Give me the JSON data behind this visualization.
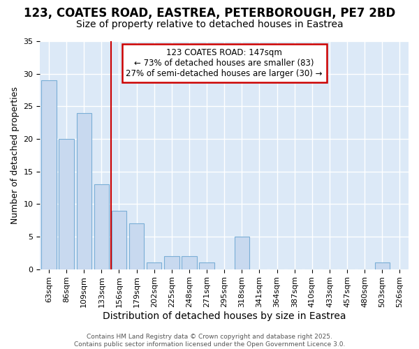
{
  "title1": "123, COATES ROAD, EASTREA, PETERBOROUGH, PE7 2BD",
  "title2": "Size of property relative to detached houses in Eastrea",
  "xlabel": "Distribution of detached houses by size in Eastrea",
  "ylabel": "Number of detached properties",
  "categories": [
    "63sqm",
    "86sqm",
    "109sqm",
    "133sqm",
    "156sqm",
    "179sqm",
    "202sqm",
    "225sqm",
    "248sqm",
    "271sqm",
    "295sqm",
    "318sqm",
    "341sqm",
    "364sqm",
    "387sqm",
    "410sqm",
    "433sqm",
    "457sqm",
    "480sqm",
    "503sqm",
    "526sqm"
  ],
  "values": [
    29,
    20,
    24,
    13,
    9,
    7,
    1,
    2,
    2,
    1,
    0,
    5,
    0,
    0,
    0,
    0,
    0,
    0,
    0,
    1,
    0
  ],
  "bar_color": "#c8d9ef",
  "bar_edge_color": "#7aaed6",
  "fig_bg_color": "#ffffff",
  "plot_bg_color": "#dce9f7",
  "grid_color": "#ffffff",
  "annotation_text": "123 COATES ROAD: 147sqm\n← 73% of detached houses are smaller (83)\n27% of semi-detached houses are larger (30) →",
  "vline_x_index": 3.53,
  "vline_color": "#cc0000",
  "annotation_box_edge_color": "#cc0000",
  "ylim": [
    0,
    35
  ],
  "yticks": [
    0,
    5,
    10,
    15,
    20,
    25,
    30,
    35
  ],
  "footer": "Contains HM Land Registry data © Crown copyright and database right 2025.\nContains public sector information licensed under the Open Government Licence 3.0.",
  "title_fontsize": 12,
  "subtitle_fontsize": 10,
  "tick_fontsize": 8,
  "ylabel_fontsize": 9,
  "xlabel_fontsize": 10,
  "annotation_fontsize": 8.5
}
